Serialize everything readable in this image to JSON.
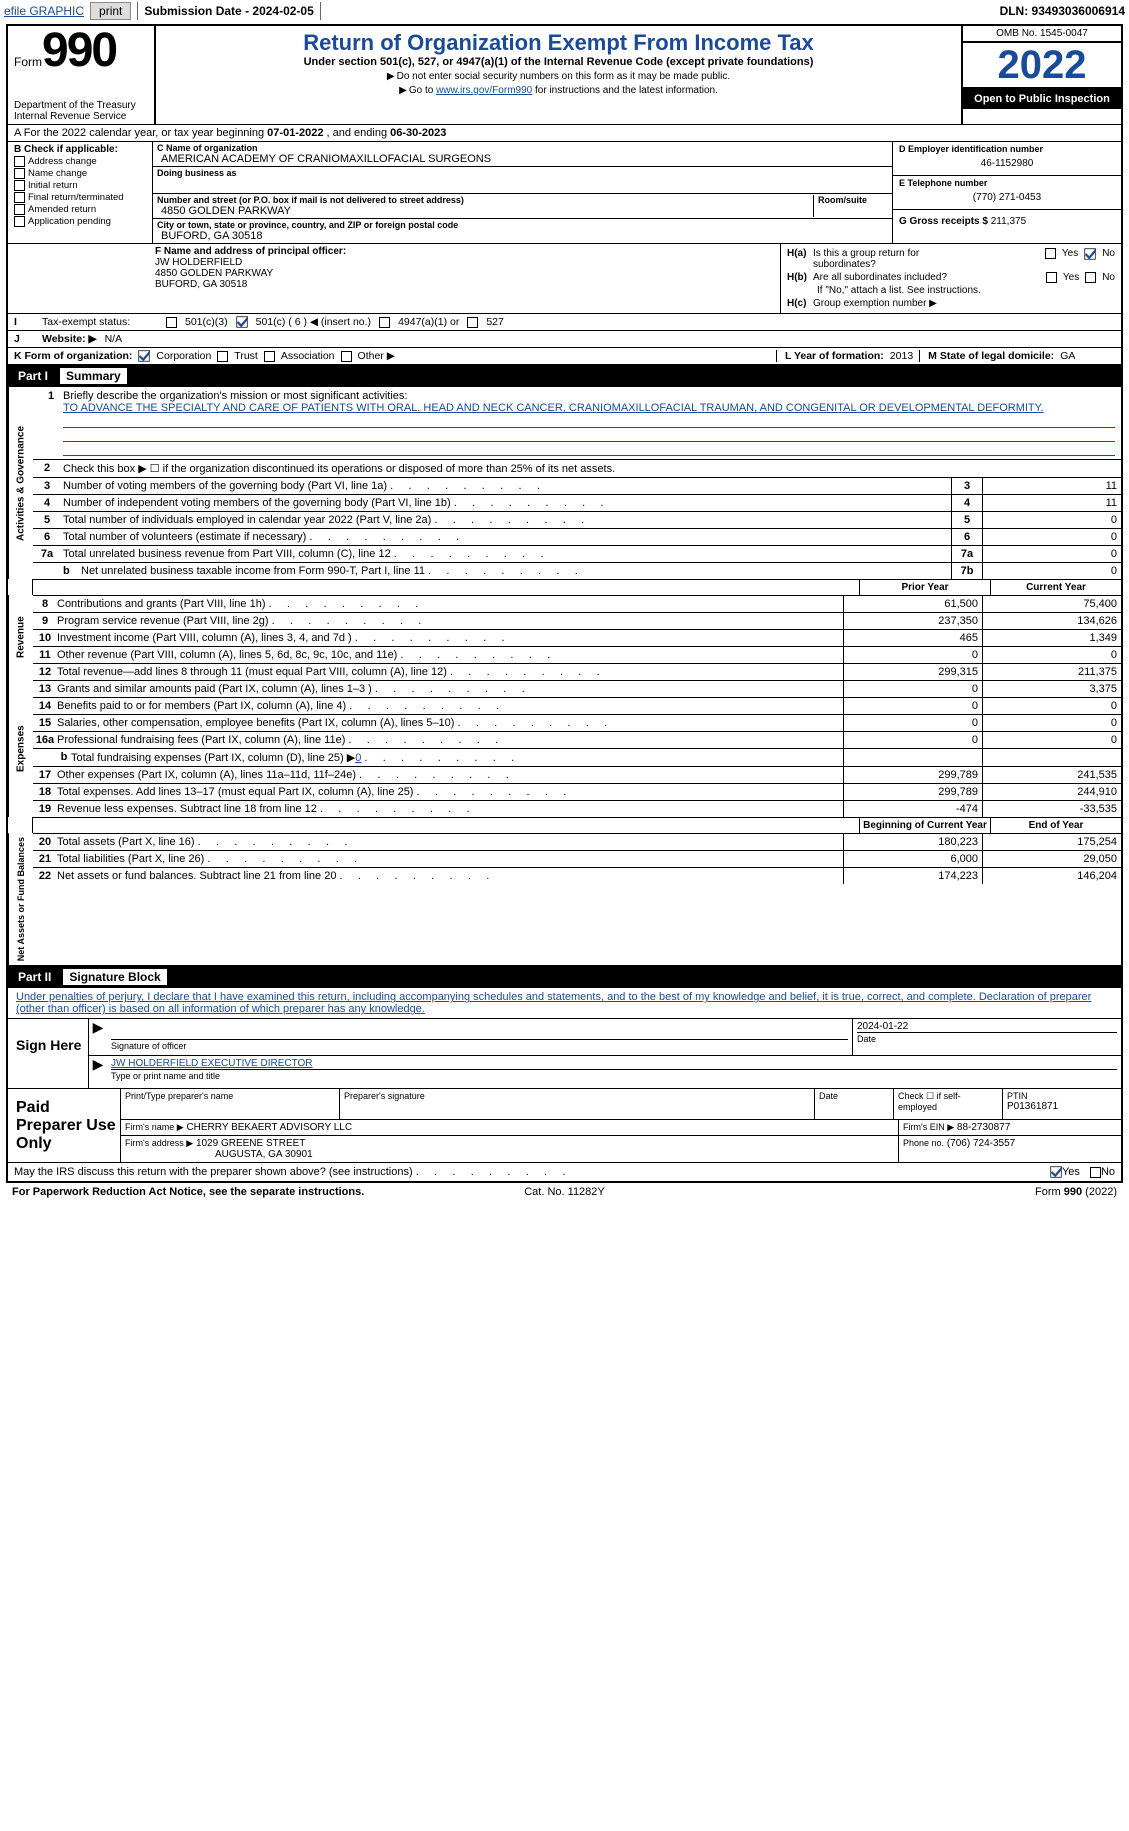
{
  "topbar": {
    "efile": "efile GRAPHIC",
    "print": "print",
    "sublabel": "Submission Date - 2024-02-05",
    "dln_label": "DLN: 93493036006914"
  },
  "header": {
    "form_label": "Form",
    "form_no": "990",
    "dept": "Department of the Treasury",
    "irs": "Internal Revenue Service",
    "title": "Return of Organization Exempt From Income Tax",
    "subtitle": "Under section 501(c), 527, or 4947(a)(1) of the Internal Revenue Code (except private foundations)",
    "warn": "Do not enter social security numbers on this form as it may be made public.",
    "goto_pre": "Go to ",
    "goto_link": "www.irs.gov/Form990",
    "goto_post": " for instructions and the latest information.",
    "omb": "OMB No. 1545-0047",
    "year": "2022",
    "open": "Open to Public Inspection"
  },
  "lineA": {
    "pre": "A For the 2022 calendar year, or tax year beginning ",
    "begin": "07-01-2022",
    "mid": "   , and ending ",
    "end": "06-30-2023"
  },
  "colB": {
    "hdr": "B Check if applicable:",
    "items": [
      "Address change",
      "Name change",
      "Initial return",
      "Final return/terminated",
      "Amended return",
      "Application pending"
    ]
  },
  "colC": {
    "name_lbl": "C Name of organization",
    "name": "AMERICAN ACADEMY OF CRANIOMAXILLOFACIAL SURGEONS",
    "dba_lbl": "Doing business as",
    "dba": "",
    "addr_lbl": "Number and street (or P.O. box if mail is not delivered to street address)",
    "room_lbl": "Room/suite",
    "addr": "4850 GOLDEN PARKWAY",
    "city_lbl": "City or town, state or province, country, and ZIP or foreign postal code",
    "city": "BUFORD, GA  30518"
  },
  "colD": {
    "ein_lbl": "D Employer identification number",
    "ein": "46-1152980",
    "tel_lbl": "E Telephone number",
    "tel": "(770) 271-0453",
    "gross_lbl": "G Gross receipts $",
    "gross": "211,375"
  },
  "secF": {
    "lbl": "F Name and address of principal officer:",
    "name": "JW HOLDERFIELD",
    "addr1": "4850 GOLDEN PARKWAY",
    "addr2": "BUFORD, GA  30518"
  },
  "secH": {
    "ha_lbl": "Is this a group return for",
    "ha_lbl2": "subordinates?",
    "hb_lbl": "Are all subordinates included?",
    "hb_note": "If \"No,\" attach a list. See instructions.",
    "hc_lbl": "Group exemption number ▶",
    "ha": "H(a)",
    "hb": "H(b)",
    "hc": "H(c)"
  },
  "lineI": {
    "lbl": "Tax-exempt status:",
    "o1": "501(c)(3)",
    "o2": "501(c) ( 6 ) ◀ (insert no.)",
    "o3": "4947(a)(1) or",
    "o4": "527"
  },
  "lineJ": {
    "lbl": "Website: ▶",
    "val": "N/A"
  },
  "lineK": {
    "lbl": "K Form of organization:",
    "o1": "Corporation",
    "o2": "Trust",
    "o3": "Association",
    "o4": "Other ▶"
  },
  "lineL": {
    "year_lbl": "L Year of formation:",
    "year": "2013",
    "state_lbl": "M State of legal domicile:",
    "state": "GA"
  },
  "part1": {
    "num": "Part I",
    "title": "Summary"
  },
  "mission": {
    "lbl": "Briefly describe the organization's mission or most significant activities:",
    "text": "TO ADVANCE THE SPECIALTY AND CARE OF PATIENTS WITH ORAL, HEAD AND NECK CANCER, CRANIOMAXILLOFACIAL TRAUMAN, AND CONGENITAL OR DEVELOPMENTAL DEFORMITY."
  },
  "gov": {
    "vtab": "Activities & Governance",
    "rows": [
      {
        "n": "2",
        "d": "Check this box ▶ ☐ if the organization discontinued its operations or disposed of more than 25% of its net assets."
      },
      {
        "n": "3",
        "d": "Number of voting members of the governing body (Part VI, line 1a)",
        "box": "3",
        "v": "11"
      },
      {
        "n": "4",
        "d": "Number of independent voting members of the governing body (Part VI, line 1b)",
        "box": "4",
        "v": "11"
      },
      {
        "n": "5",
        "d": "Total number of individuals employed in calendar year 2022 (Part V, line 2a)",
        "box": "5",
        "v": "0"
      },
      {
        "n": "6",
        "d": "Total number of volunteers (estimate if necessary)",
        "box": "6",
        "v": "0"
      },
      {
        "n": "7a",
        "d": "Total unrelated business revenue from Part VIII, column (C), line 12",
        "box": "7a",
        "v": "0"
      },
      {
        "n": "b",
        "d": "Net unrelated business taxable income from Form 990-T, Part I, line 11",
        "box": "7b",
        "v": "0",
        "sub": true
      }
    ]
  },
  "finhdr": {
    "prior": "Prior Year",
    "curr": "Current Year"
  },
  "rev": {
    "vtab": "Revenue",
    "rows": [
      {
        "n": "8",
        "d": "Contributions and grants (Part VIII, line 1h)",
        "p": "61,500",
        "c": "75,400"
      },
      {
        "n": "9",
        "d": "Program service revenue (Part VIII, line 2g)",
        "p": "237,350",
        "c": "134,626"
      },
      {
        "n": "10",
        "d": "Investment income (Part VIII, column (A), lines 3, 4, and 7d )",
        "p": "465",
        "c": "1,349"
      },
      {
        "n": "11",
        "d": "Other revenue (Part VIII, column (A), lines 5, 6d, 8c, 9c, 10c, and 11e)",
        "p": "0",
        "c": "0"
      },
      {
        "n": "12",
        "d": "Total revenue—add lines 8 through 11 (must equal Part VIII, column (A), line 12)",
        "p": "299,315",
        "c": "211,375"
      }
    ]
  },
  "exp": {
    "vtab": "Expenses",
    "rows": [
      {
        "n": "13",
        "d": "Grants and similar amounts paid (Part IX, column (A), lines 1–3 )",
        "p": "0",
        "c": "3,375"
      },
      {
        "n": "14",
        "d": "Benefits paid to or for members (Part IX, column (A), line 4)",
        "p": "0",
        "c": "0"
      },
      {
        "n": "15",
        "d": "Salaries, other compensation, employee benefits (Part IX, column (A), lines 5–10)",
        "p": "0",
        "c": "0"
      },
      {
        "n": "16a",
        "d": "Professional fundraising fees (Part IX, column (A), line 11e)",
        "p": "0",
        "c": "0"
      },
      {
        "n": "b",
        "d": "Total fundraising expenses (Part IX, column (D), line 25) ▶",
        "sub": true,
        "link": "0",
        "grey": true
      },
      {
        "n": "17",
        "d": "Other expenses (Part IX, column (A), lines 11a–11d, 11f–24e)",
        "p": "299,789",
        "c": "241,535"
      },
      {
        "n": "18",
        "d": "Total expenses. Add lines 13–17 (must equal Part IX, column (A), line 25)",
        "p": "299,789",
        "c": "244,910"
      },
      {
        "n": "19",
        "d": "Revenue less expenses. Subtract line 18 from line 12",
        "p": "-474",
        "c": "-33,535"
      }
    ]
  },
  "nethdr": {
    "begin": "Beginning of Current Year",
    "end": "End of Year"
  },
  "net": {
    "vtab": "Net Assets or Fund Balances",
    "rows": [
      {
        "n": "20",
        "d": "Total assets (Part X, line 16)",
        "p": "180,223",
        "c": "175,254"
      },
      {
        "n": "21",
        "d": "Total liabilities (Part X, line 26)",
        "p": "6,000",
        "c": "29,050"
      },
      {
        "n": "22",
        "d": "Net assets or fund balances. Subtract line 21 from line 20",
        "p": "174,223",
        "c": "146,204"
      }
    ]
  },
  "part2": {
    "num": "Part II",
    "title": "Signature Block"
  },
  "sigintro": "Under penalties of perjury, I declare that I have examined this return, including accompanying schedules and statements, and to the best of my knowledge and belief, it is true, correct, and complete. Declaration of preparer (other than officer) is based on all information of which preparer has any knowledge.",
  "sign": {
    "here": "Sign Here",
    "sig_cap": "Signature of officer",
    "date": "2024-01-22",
    "date_cap": "Date",
    "name": "JW HOLDERFIELD  EXECUTIVE DIRECTOR",
    "name_cap": "Type or print name and title"
  },
  "prep": {
    "label": "Paid Preparer Use Only",
    "r1": {
      "c1_lbl": "Print/Type preparer's name",
      "c1": "",
      "c2_lbl": "Preparer's signature",
      "c2": "",
      "c3_lbl": "Date",
      "c3": "",
      "c4_lbl": "Check ☐ if self-employed",
      "c5_lbl": "PTIN",
      "c5": "P01361871"
    },
    "r2": {
      "lbl": "Firm's name    ▶",
      "val": "CHERRY BEKAERT ADVISORY LLC",
      "ein_lbl": "Firm's EIN ▶",
      "ein": "88-2730877"
    },
    "r3": {
      "lbl": "Firm's address ▶",
      "val": "1029 GREENE STREET",
      "val2": "AUGUSTA, GA  30901",
      "ph_lbl": "Phone no.",
      "ph": "(706) 724-3557"
    }
  },
  "discuss": {
    "text": "May the IRS discuss this return with the preparer shown above? (see instructions)",
    "yes": "Yes",
    "no": "No"
  },
  "footer": {
    "l": "For Paperwork Reduction Act Notice, see the separate instructions.",
    "m": "Cat. No. 11282Y",
    "r": "Form 990 (2022)"
  },
  "yn": {
    "yes": "Yes",
    "no": "No"
  },
  "colors": {
    "link": "#1a4b99",
    "grey": "#cccccc"
  }
}
